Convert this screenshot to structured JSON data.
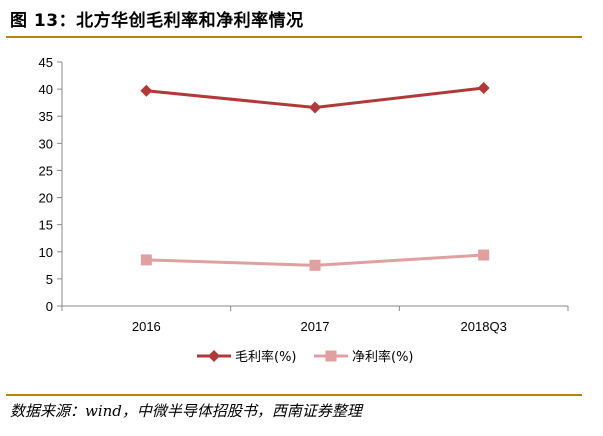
{
  "header": {
    "title": "图 13：北方华创毛利率和净利率情况"
  },
  "footer": {
    "source": "数据来源：wind，中微半导体招股书，西南证券整理"
  },
  "chart_data": {
    "type": "line",
    "title": "",
    "xlabel": "",
    "ylabel": "",
    "categories": [
      "2016",
      "2017",
      "2018Q3"
    ],
    "ylim": [
      0,
      45
    ],
    "yticks": [
      0,
      5,
      10,
      15,
      20,
      25,
      30,
      35,
      40,
      45
    ],
    "grid": false,
    "legend_position": "bottom",
    "series": [
      {
        "name": "毛利率(%)",
        "values": [
          39.7,
          36.6,
          40.2
        ],
        "color": "#b03a3a",
        "marker": "diamond"
      },
      {
        "name": "净利率(%)",
        "values": [
          8.5,
          7.5,
          9.4
        ],
        "color": "#e0a0a0",
        "marker": "square"
      }
    ]
  }
}
